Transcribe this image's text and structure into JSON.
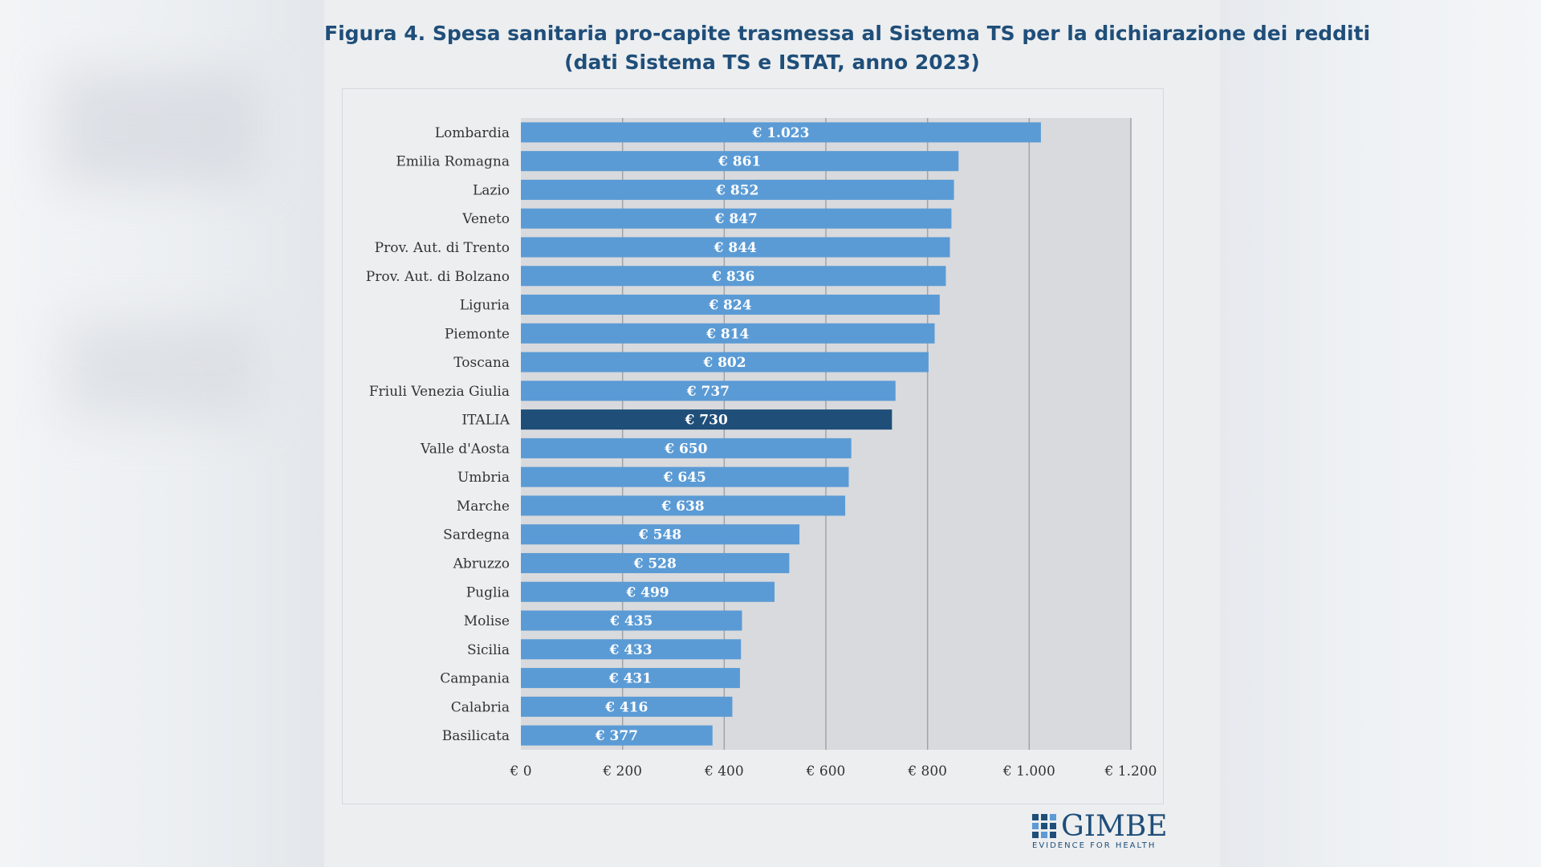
{
  "chart_data": {
    "type": "bar",
    "orientation": "horizontal",
    "title": "Figura 4. Spesa sanitaria pro-capite trasmessa al Sistema TS per la dichiarazione dei redditi",
    "subtitle": "(dati Sistema TS e ISTAT, anno 2023)",
    "xlabel": "",
    "ylabel": "",
    "categories": [
      "Lombardia",
      "Emilia Romagna",
      "Lazio",
      "Veneto",
      "Prov. Aut. di Trento",
      "Prov. Aut. di Bolzano",
      "Liguria",
      "Piemonte",
      "Toscana",
      "Friuli Venezia Giulia",
      "ITALIA",
      "Valle d'Aosta",
      "Umbria",
      "Marche",
      "Sardegna",
      "Abruzzo",
      "Puglia",
      "Molise",
      "Sicilia",
      "Campania",
      "Calabria",
      "Basilicata"
    ],
    "values": [
      1023,
      861,
      852,
      847,
      844,
      836,
      824,
      814,
      802,
      737,
      730,
      650,
      645,
      638,
      548,
      528,
      499,
      435,
      433,
      431,
      416,
      377
    ],
    "value_labels": [
      "€ 1.023",
      "€ 861",
      "€ 852",
      "€ 847",
      "€ 844",
      "€ 836",
      "€ 824",
      "€ 814",
      "€ 802",
      "€ 737",
      "€ 730",
      "€ 650",
      "€ 645",
      "€ 638",
      "€ 548",
      "€ 528",
      "€ 499",
      "€ 435",
      "€ 433",
      "€ 431",
      "€ 416",
      "€ 377"
    ],
    "highlight_category": "ITALIA",
    "xlim": [
      0,
      1200
    ],
    "xticks": [
      0,
      200,
      400,
      600,
      800,
      1000,
      1200
    ],
    "xtick_labels": [
      "€ 0",
      "€ 200",
      "€ 400",
      "€ 600",
      "€ 800",
      "€ 1.000",
      "€ 1.200"
    ],
    "grid": true,
    "colors": {
      "bar": "#5b9bd5",
      "highlight": "#1f4e79",
      "plot_bg": "#d9dadd",
      "grid": "#a0a3a8",
      "title": "#1f4e79"
    }
  },
  "logo": {
    "name": "GIMBE",
    "tagline": "EVIDENCE FOR HEALTH"
  }
}
